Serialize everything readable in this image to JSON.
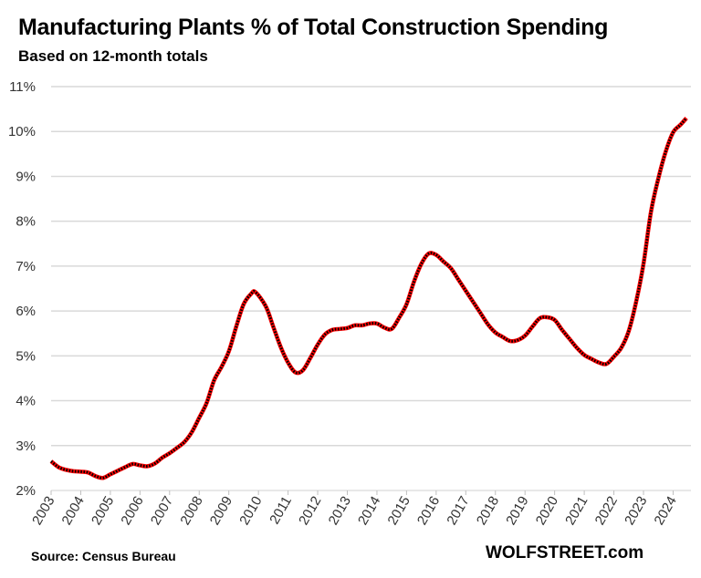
{
  "chart_data": {
    "type": "line",
    "title": "Manufacturing Plants % of Total Construction Spending",
    "subtitle": "Based on 12-month totals",
    "xlabel": "",
    "ylabel": "",
    "ylim": [
      2,
      11
    ],
    "xlim": [
      2003,
      2024.5
    ],
    "grid": true,
    "legend": "none",
    "colors": {
      "line": "#ff0000",
      "markers": "#000000",
      "grid": "#d9d9d9"
    },
    "y_ticks": [
      "2%",
      "3%",
      "4%",
      "5%",
      "6%",
      "7%",
      "8%",
      "9%",
      "10%",
      "11%"
    ],
    "x_ticks": [
      "2003",
      "2004",
      "2005",
      "2006",
      "2007",
      "2008",
      "2009",
      "2010",
      "2011",
      "2012",
      "2013",
      "2014",
      "2015",
      "2016",
      "2017",
      "2018",
      "2019",
      "2020",
      "2021",
      "2022",
      "2023",
      "2024"
    ],
    "series": [
      {
        "x": [
          2003.0,
          2003.25,
          2003.5,
          2003.75,
          2004.0,
          2004.25,
          2004.5,
          2004.75,
          2005.0,
          2005.25,
          2005.5,
          2005.75,
          2006.0,
          2006.25,
          2006.5,
          2006.75,
          2007.0,
          2007.25,
          2007.5,
          2007.75,
          2008.0,
          2008.25,
          2008.5,
          2008.75,
          2009.0,
          2009.25,
          2009.5,
          2009.75,
          2009.9,
          2010.25,
          2010.5,
          2010.75,
          2011.0,
          2011.25,
          2011.5,
          2011.75,
          2012.0,
          2012.25,
          2012.5,
          2012.75,
          2013.0,
          2013.25,
          2013.5,
          2013.75,
          2014.0,
          2014.25,
          2014.5,
          2014.75,
          2015.0,
          2015.25,
          2015.5,
          2015.75,
          2016.0,
          2016.25,
          2016.5,
          2016.75,
          2017.0,
          2017.25,
          2017.5,
          2017.75,
          2018.0,
          2018.25,
          2018.5,
          2018.75,
          2019.0,
          2019.25,
          2019.5,
          2019.75,
          2020.0,
          2020.25,
          2020.5,
          2020.75,
          2021.0,
          2021.25,
          2021.5,
          2021.75,
          2022.0,
          2022.25,
          2022.5,
          2022.75,
          2023.0,
          2023.25,
          2023.5,
          2023.75,
          2024.0,
          2024.25,
          2024.45
        ],
        "values": [
          2.65,
          2.52,
          2.46,
          2.43,
          2.42,
          2.4,
          2.32,
          2.28,
          2.36,
          2.44,
          2.52,
          2.59,
          2.56,
          2.54,
          2.6,
          2.73,
          2.83,
          2.95,
          3.08,
          3.3,
          3.62,
          3.95,
          4.45,
          4.75,
          5.1,
          5.65,
          6.15,
          6.38,
          6.42,
          6.1,
          5.65,
          5.2,
          4.85,
          4.63,
          4.68,
          4.95,
          5.25,
          5.48,
          5.58,
          5.6,
          5.62,
          5.68,
          5.68,
          5.72,
          5.72,
          5.63,
          5.6,
          5.85,
          6.15,
          6.65,
          7.05,
          7.28,
          7.25,
          7.1,
          6.95,
          6.7,
          6.45,
          6.2,
          5.95,
          5.7,
          5.52,
          5.42,
          5.33,
          5.35,
          5.45,
          5.65,
          5.84,
          5.86,
          5.8,
          5.58,
          5.38,
          5.18,
          5.02,
          4.93,
          4.85,
          4.82,
          4.98,
          5.18,
          5.55,
          6.2,
          7.05,
          8.2,
          8.95,
          9.55,
          9.98,
          10.15,
          10.3
        ]
      }
    ]
  },
  "footer": {
    "source": "Source: Census Bureau",
    "brand": "WOLFSTREET.com"
  }
}
